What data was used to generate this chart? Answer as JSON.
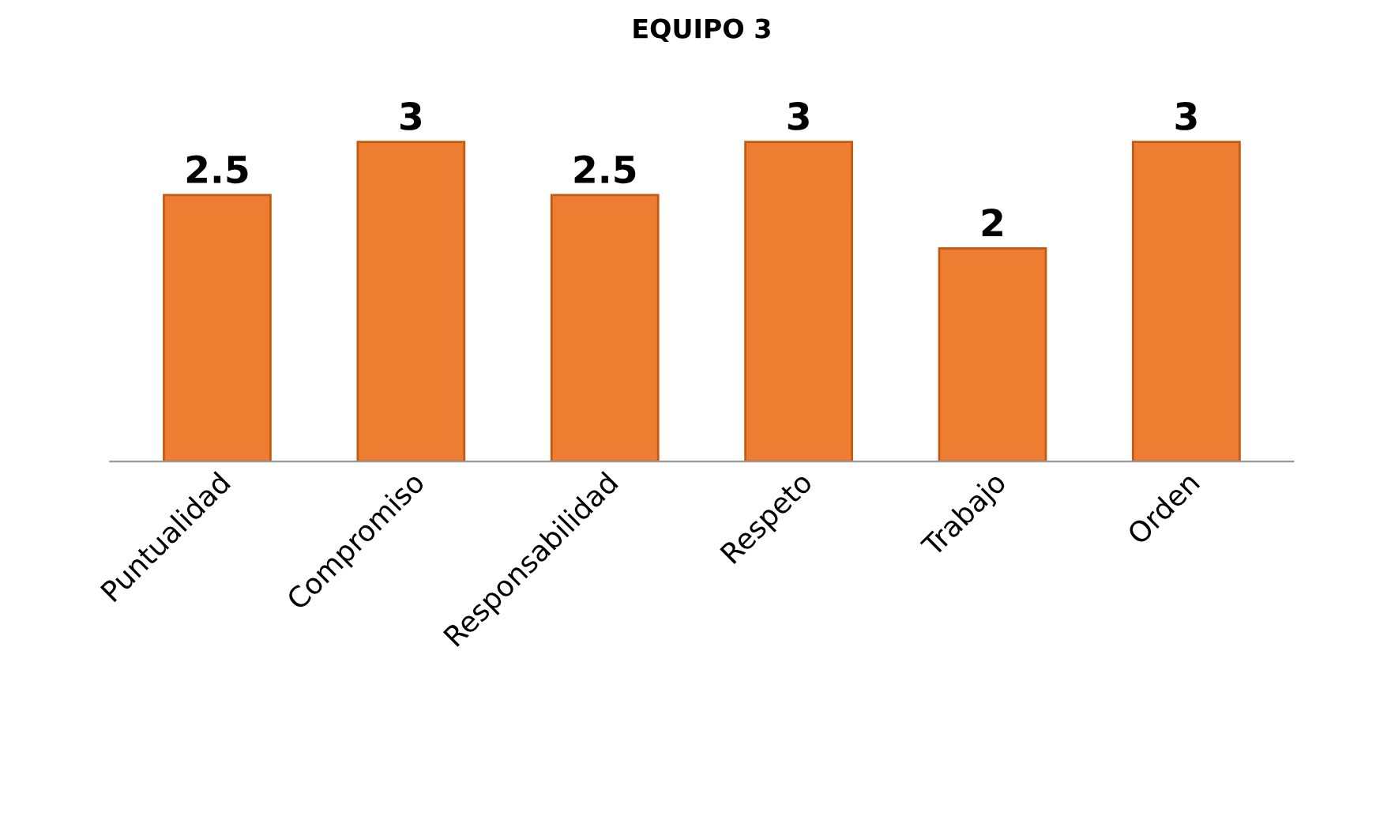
{
  "chart_data": {
    "type": "bar",
    "title": "EQUIPO 3",
    "categories": [
      "Puntualidad",
      "Compromiso",
      "Responsabilidad",
      "Respeto",
      "Trabajo",
      "Orden"
    ],
    "values": [
      2.5,
      3,
      2.5,
      3,
      2,
      3
    ],
    "color": "#ed7d31",
    "data_labels": true
  }
}
